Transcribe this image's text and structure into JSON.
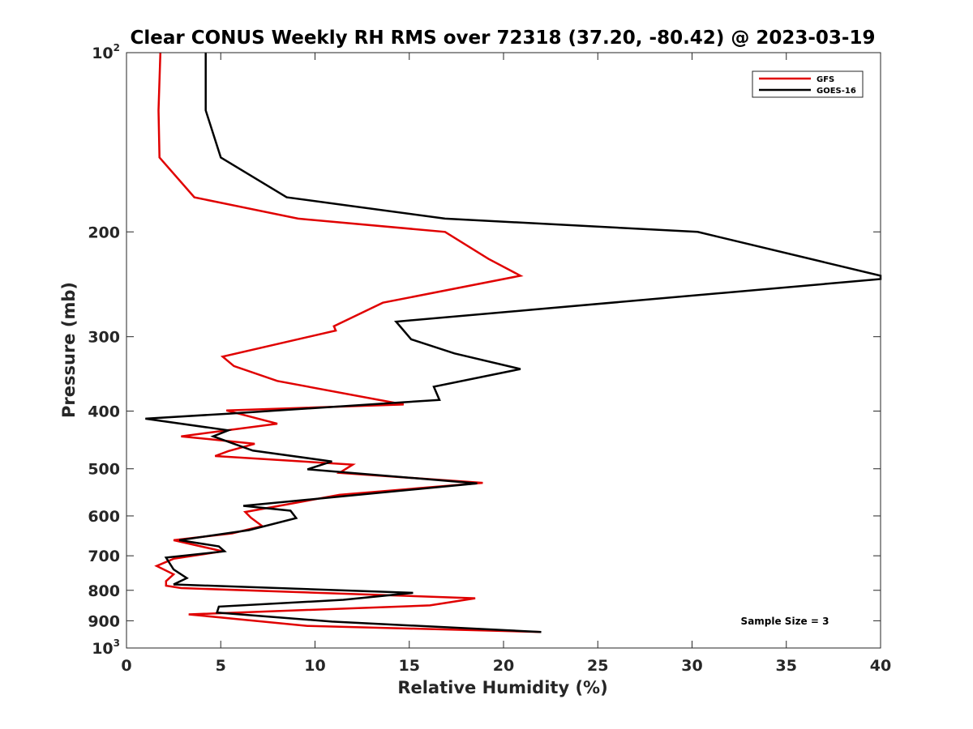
{
  "chart_data": {
    "type": "line",
    "title": "Clear CONUS Weekly RH RMS over 72318 (37.20, -80.42) @ 2023-03-19",
    "xlabel": "Relative Humidity (%)",
    "ylabel": "Pressure (mb)",
    "xlim": [
      0,
      40
    ],
    "ylim": [
      100,
      1000
    ],
    "y_scale": "log",
    "y_reversed": true,
    "x_ticks": [
      0,
      5,
      10,
      15,
      20,
      25,
      30,
      35,
      40
    ],
    "y_ticks": [
      {
        "value": 100,
        "base": "10",
        "exp": "2"
      },
      {
        "value": 200,
        "label": "200"
      },
      {
        "value": 300,
        "label": "300"
      },
      {
        "value": 400,
        "label": "400"
      },
      {
        "value": 500,
        "label": "500"
      },
      {
        "value": 600,
        "label": "600"
      },
      {
        "value": 700,
        "label": "700"
      },
      {
        "value": 800,
        "label": "800"
      },
      {
        "value": 900,
        "label": "900"
      },
      {
        "value": 1000,
        "base": "10",
        "exp": "3"
      }
    ],
    "grid": false,
    "legend_position": "top-right",
    "annotation": "Sample Size = 3",
    "series": [
      {
        "name": "GFS",
        "color": "#e00000",
        "points": [
          [
            1.8,
            100
          ],
          [
            1.7,
            125
          ],
          [
            1.75,
            150
          ],
          [
            3.6,
            175
          ],
          [
            9.1,
            190
          ],
          [
            16.9,
            200
          ],
          [
            19.2,
            222
          ],
          [
            20.9,
            237
          ],
          [
            13.6,
            263
          ],
          [
            11.0,
            288
          ],
          [
            11.1,
            293
          ],
          [
            5.1,
            324
          ],
          [
            5.7,
            336
          ],
          [
            8.0,
            356
          ],
          [
            14.7,
            390
          ],
          [
            5.3,
            399
          ],
          [
            8.0,
            420
          ],
          [
            2.9,
            441
          ],
          [
            6.8,
            454
          ],
          [
            5.4,
            467
          ],
          [
            4.7,
            476
          ],
          [
            12.0,
            492
          ],
          [
            11.3,
            508
          ],
          [
            18.9,
            528
          ],
          [
            11.3,
            553
          ],
          [
            6.3,
            591
          ],
          [
            6.6,
            604
          ],
          [
            7.2,
            624
          ],
          [
            5.6,
            642
          ],
          [
            2.5,
            659
          ],
          [
            5.1,
            688
          ],
          [
            2.5,
            708
          ],
          [
            1.6,
            728
          ],
          [
            2.5,
            752
          ],
          [
            2.1,
            772
          ],
          [
            2.1,
            786
          ],
          [
            2.9,
            793
          ],
          [
            18.5,
            825
          ],
          [
            16.1,
            848
          ],
          [
            3.3,
            878
          ],
          [
            9.6,
            918
          ],
          [
            22.0,
            940
          ]
        ]
      },
      {
        "name": "GOES-16",
        "color": "#000000",
        "points": [
          [
            4.2,
            100
          ],
          [
            4.2,
            125
          ],
          [
            5.0,
            150
          ],
          [
            8.5,
            175
          ],
          [
            16.9,
            190
          ],
          [
            30.3,
            200
          ],
          [
            40.0,
            237
          ],
          [
            40.0,
            240
          ],
          [
            14.3,
            283
          ],
          [
            15.1,
            303
          ],
          [
            17.4,
            320
          ],
          [
            20.9,
            340
          ],
          [
            16.3,
            364
          ],
          [
            16.6,
            383
          ],
          [
            5.4,
            404
          ],
          [
            1.0,
            412
          ],
          [
            5.4,
            431
          ],
          [
            4.6,
            441
          ],
          [
            6.7,
            466
          ],
          [
            10.9,
            486
          ],
          [
            9.6,
            501
          ],
          [
            18.6,
            529
          ],
          [
            6.2,
            577
          ],
          [
            8.7,
            588
          ],
          [
            9.0,
            605
          ],
          [
            6.5,
            634
          ],
          [
            2.8,
            659
          ],
          [
            4.9,
            675
          ],
          [
            5.2,
            688
          ],
          [
            2.1,
            705
          ],
          [
            2.5,
            738
          ],
          [
            3.2,
            763
          ],
          [
            2.5,
            782
          ],
          [
            15.2,
            808
          ],
          [
            11.5,
            830
          ],
          [
            4.9,
            852
          ],
          [
            4.8,
            872
          ],
          [
            10.9,
            903
          ],
          [
            22.0,
            940
          ]
        ]
      }
    ]
  }
}
